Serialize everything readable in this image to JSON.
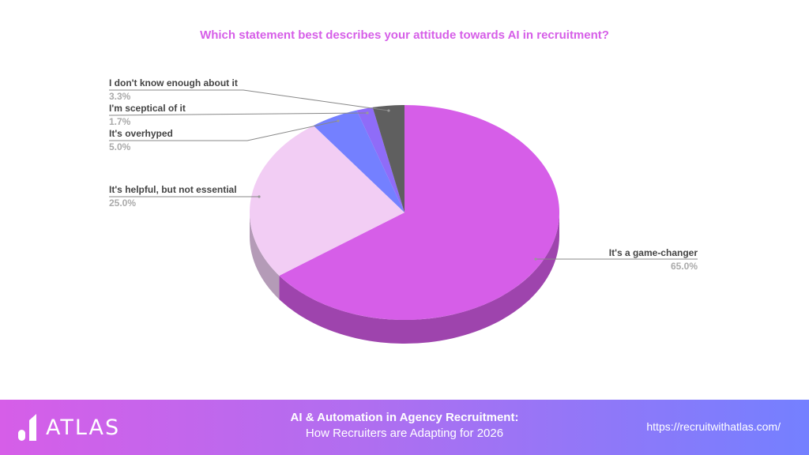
{
  "chart_data": {
    "type": "pie",
    "style": "3d",
    "title": "Which statement best describes your attitude towards AI in recruitment?",
    "slices": [
      {
        "label": "It's a game-changer",
        "value": 65.0,
        "value_label": "65.0%",
        "color": "#d65ee8",
        "side_color": "#9e44ad"
      },
      {
        "label": "It's helpful, but not essential",
        "value": 25.0,
        "value_label": "25.0%",
        "color": "#f2cdf4",
        "side_color": "#b49bb7"
      },
      {
        "label": "It's overhyped",
        "value": 5.0,
        "value_label": "5.0%",
        "color": "#7480ff",
        "side_color": "#5560c0"
      },
      {
        "label": "I'm sceptical of it",
        "value": 1.7,
        "value_label": "1.7%",
        "color": "#8f6cf8",
        "side_color": "#6a50b8"
      },
      {
        "label": "I don't know enough about it",
        "value": 3.3,
        "value_label": "3.3%",
        "color": "#5f5f5f",
        "side_color": "#444444"
      }
    ],
    "legend": "none"
  },
  "footer": {
    "logo": "ATLAS",
    "title": "AI & Automation in Agency Recruitment:",
    "subtitle": "How Recruiters are Adapting for 2026",
    "url": "https://recruitwithatlas.com/"
  }
}
